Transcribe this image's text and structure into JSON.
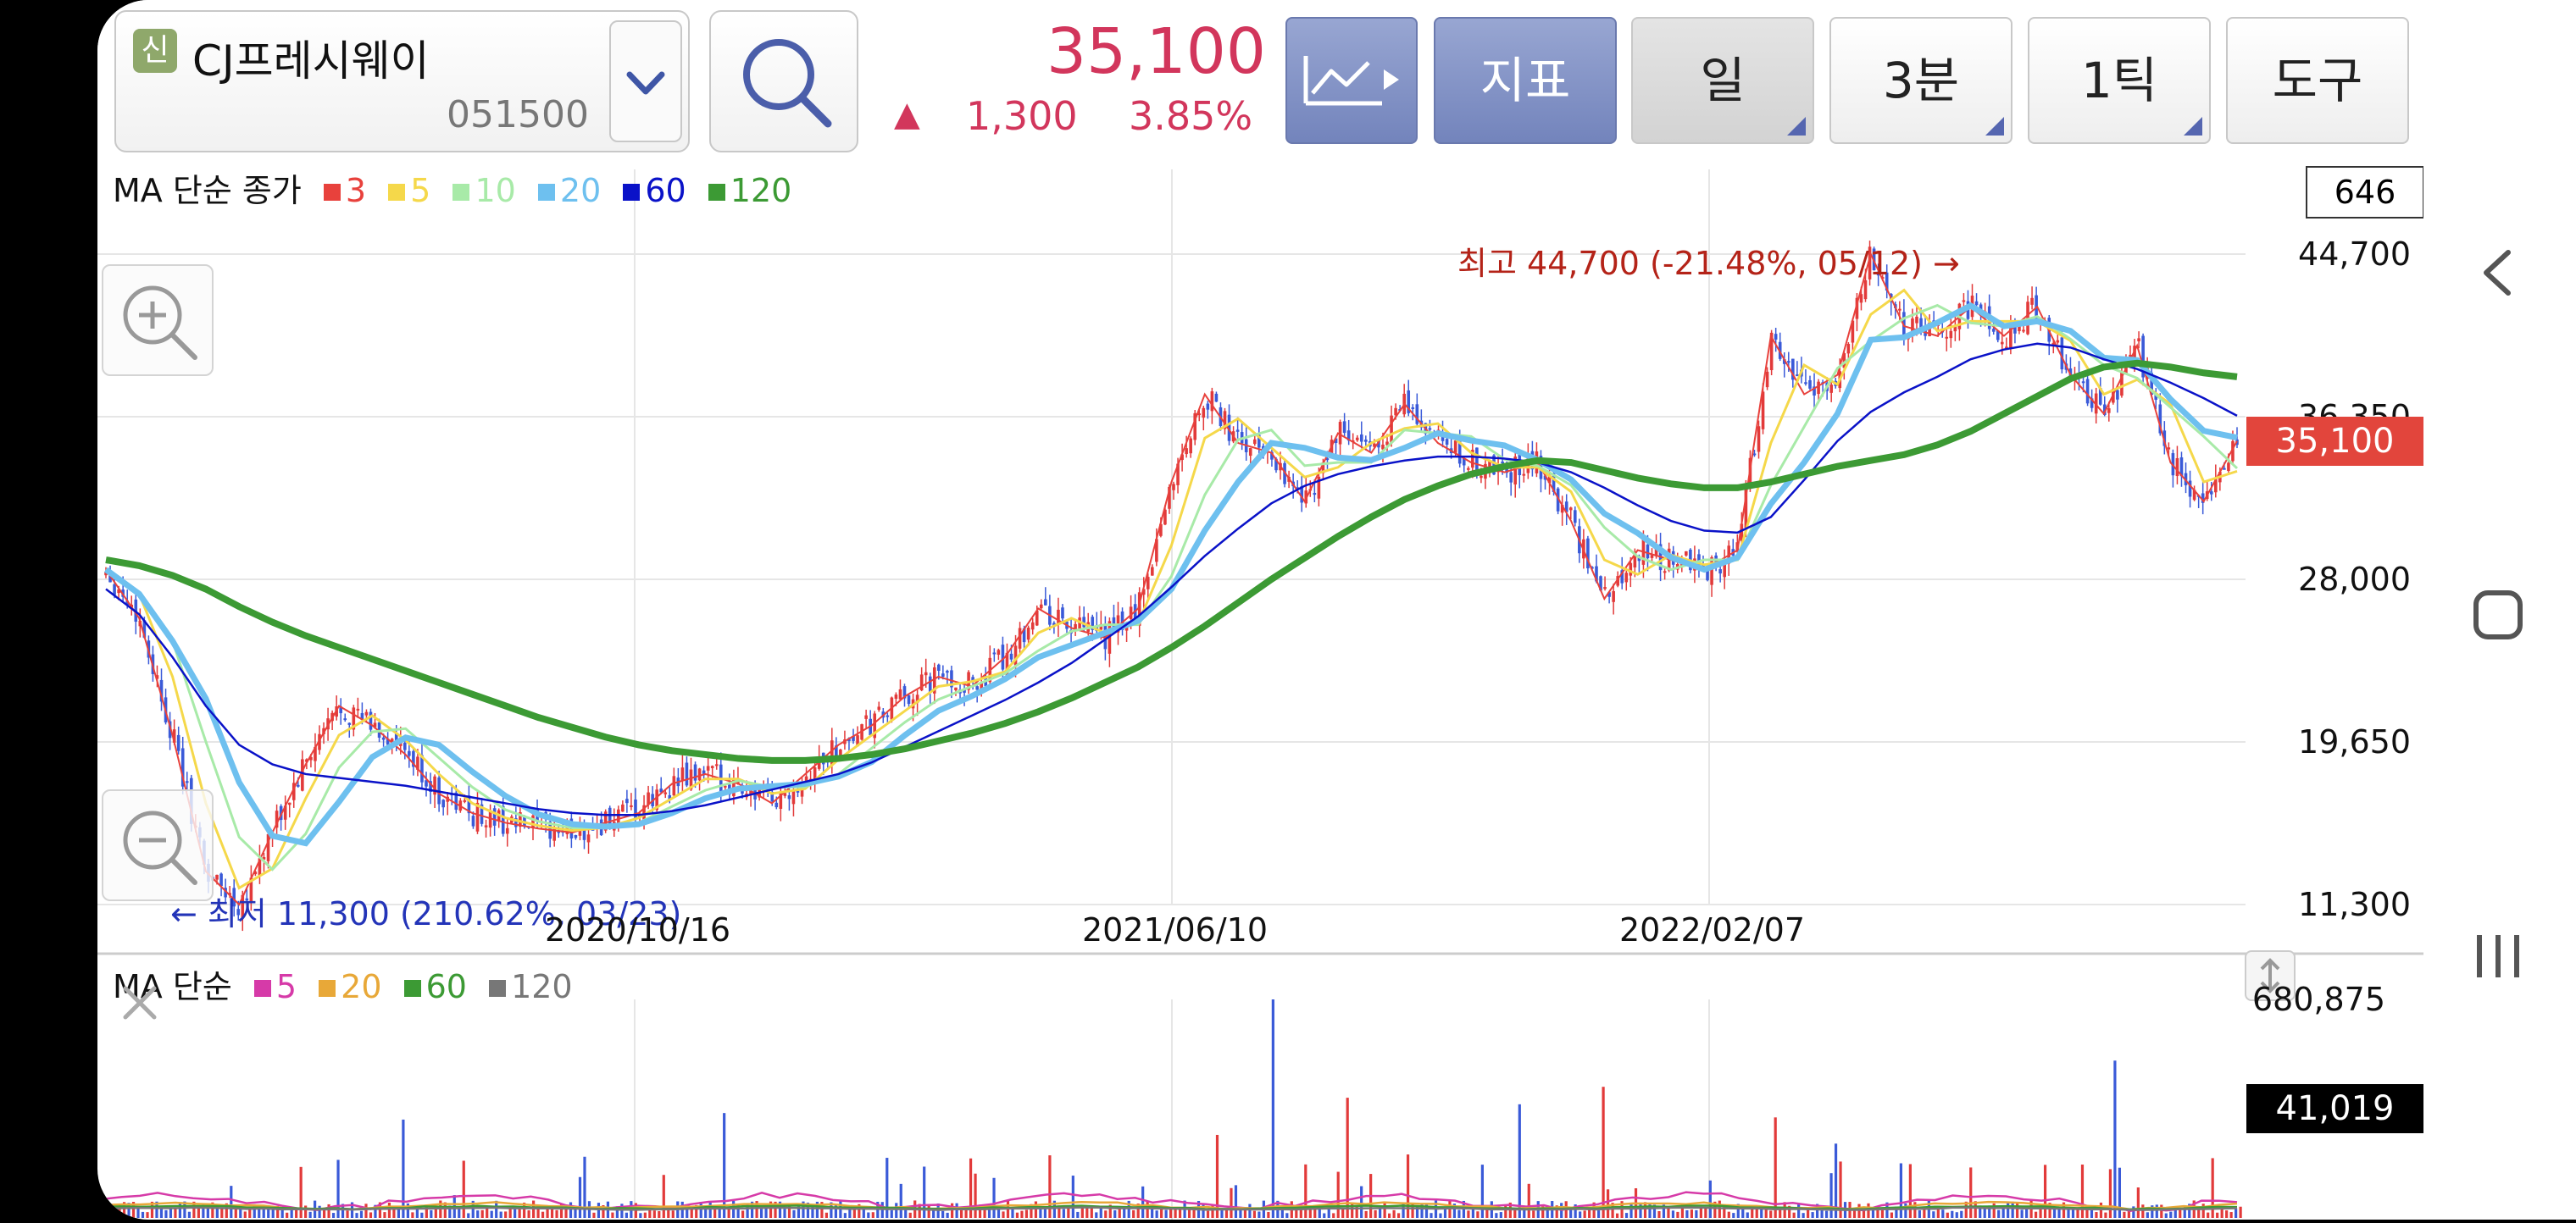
{
  "stock": {
    "badge": "신",
    "name": "CJ프레시웨이",
    "code": "051500",
    "price": "35,100",
    "change_arrow": "▲",
    "change": "1,300",
    "change_pct": "3.85%"
  },
  "toolbar": {
    "chart_type_label": "",
    "indicator_label": "지표",
    "period_label": "일",
    "interval_label": "3분",
    "tick_label": "1틱",
    "tools_label": "도구"
  },
  "price_panel": {
    "legend_title": "MA 단순 종가",
    "legend_items": [
      {
        "label": "3",
        "color": "#e8413c"
      },
      {
        "label": "5",
        "color": "#f5d84a"
      },
      {
        "label": "10",
        "color": "#a8eaa8"
      },
      {
        "label": "20",
        "color": "#6ec0ef"
      },
      {
        "label": "60",
        "color": "#0a12c8"
      },
      {
        "label": "120",
        "color": "#3c9a34"
      }
    ],
    "count_box": "646",
    "y_labels": [
      "44,700",
      "36,350",
      "28,000",
      "19,650",
      "11,300"
    ],
    "current_price_tag": "35,100",
    "max_annotation": "최고 44,700 (-21.48%, 05/12) →",
    "min_annotation": "← 최저 11,300 (210.62%, 03/23)",
    "x_labels": [
      "2020/10/16",
      "2021/06/10",
      "2022/02/07"
    ]
  },
  "volume_panel": {
    "legend_title": "MA 단순",
    "legend_items": [
      {
        "label": "5",
        "color": "#d63aa8"
      },
      {
        "label": "20",
        "color": "#e8a838"
      },
      {
        "label": "60",
        "color": "#3c9a34"
      },
      {
        "label": "120",
        "color": "#777777"
      }
    ],
    "max_label": "680,875",
    "current_tag": "41,019"
  },
  "colors": {
    "up": "#e23a3a",
    "down": "#3a5ad8",
    "grid": "#e6e6e6"
  },
  "chart_data": {
    "type": "line",
    "title": "CJ프레시웨이 051500",
    "ylim": [
      11300,
      44700
    ],
    "yticks": [
      44700,
      36350,
      28000,
      19650,
      11300
    ],
    "xticks": [
      "2020/10/16",
      "2021/06/10",
      "2022/02/07"
    ],
    "series": [
      {
        "name": "종가",
        "values": [
          28500,
          26000,
          20000,
          13000,
          11300,
          15000,
          18500,
          21500,
          20500,
          19000,
          17000,
          16000,
          15500,
          15200,
          15000,
          15500,
          16000,
          17500,
          18000,
          17500,
          16500,
          18000,
          19500,
          20500,
          22000,
          23000,
          22500,
          24000,
          26500,
          25500,
          25000,
          26500,
          33000,
          37500,
          35000,
          34500,
          32000,
          35500,
          34500,
          37000,
          35000,
          34000,
          33500,
          34000,
          31000,
          27000,
          29500,
          29000,
          28500,
          29500,
          40500,
          37500,
          38500,
          44700,
          41000,
          40500,
          42000,
          40500,
          42000,
          38500,
          36500,
          40000,
          34000,
          32000,
          35100
        ]
      },
      {
        "name": "MA 60",
        "values": [
          27500,
          26200,
          24000,
          21500,
          19500,
          18500,
          18000,
          17800,
          17600,
          17400,
          17100,
          16800,
          16500,
          16200,
          16000,
          15900,
          15900,
          16100,
          16400,
          16800,
          17200,
          17600,
          18000,
          18600,
          19400,
          20200,
          21000,
          21800,
          22700,
          23700,
          24900,
          26100,
          27600,
          29200,
          30600,
          31900,
          32800,
          33400,
          33800,
          34100,
          34300,
          34300,
          34200,
          34000,
          33500,
          32700,
          31800,
          31000,
          30500,
          30400,
          31200,
          33100,
          35100,
          36600,
          37600,
          38400,
          39300,
          39800,
          40100,
          39900,
          39300,
          38800,
          38100,
          37300,
          36400
        ]
      },
      {
        "name": "MA 120",
        "values": [
          29000,
          28700,
          28200,
          27500,
          26600,
          25800,
          25100,
          24500,
          23900,
          23300,
          22700,
          22100,
          21500,
          20900,
          20400,
          19900,
          19500,
          19200,
          19000,
          18800,
          18700,
          18700,
          18800,
          19000,
          19300,
          19700,
          20100,
          20600,
          21200,
          21900,
          22700,
          23500,
          24500,
          25600,
          26800,
          28000,
          29100,
          30200,
          31200,
          32100,
          32800,
          33400,
          33800,
          34100,
          34000,
          33600,
          33200,
          32900,
          32700,
          32700,
          33000,
          33400,
          33800,
          34100,
          34400,
          34900,
          35600,
          36500,
          37400,
          38300,
          38900,
          39100,
          38900,
          38600,
          38400
        ]
      }
    ],
    "volume": {
      "max": 680875,
      "current": 41019
    }
  }
}
